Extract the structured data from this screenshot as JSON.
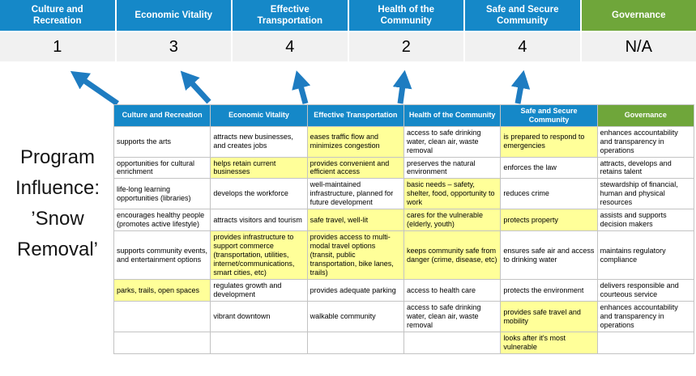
{
  "page_title": "Program Influence: ’Snow Removal’",
  "colors": {
    "header_blue": "#1588C8",
    "header_green": "#6FA63A",
    "highlight_yellow": "#FFFF99",
    "score_bg": "#F1F1F1",
    "arrow_blue": "#1E7CC1"
  },
  "summary": {
    "columns": [
      {
        "label": "Culture and Recreation",
        "score": "1",
        "theme": "blue"
      },
      {
        "label": "Economic Vitality",
        "score": "3",
        "theme": "blue"
      },
      {
        "label": "Effective Transportation",
        "score": "4",
        "theme": "blue"
      },
      {
        "label": "Health of the Community",
        "score": "2",
        "theme": "blue"
      },
      {
        "label": "Safe and Secure Community",
        "score": "4",
        "theme": "blue"
      },
      {
        "label": "Governance",
        "score": "N/A",
        "theme": "green"
      }
    ]
  },
  "matrix": {
    "headers": [
      {
        "label": "Culture and Recreation",
        "theme": "blue"
      },
      {
        "label": "Economic Vitality",
        "theme": "blue"
      },
      {
        "label": "Effective Transportation",
        "theme": "blue"
      },
      {
        "label": "Health of the Community",
        "theme": "blue"
      },
      {
        "label": "Safe and Secure Community",
        "theme": "blue"
      },
      {
        "label": "Governance",
        "theme": "green"
      }
    ],
    "rows": [
      [
        {
          "text": "supports the arts",
          "highlight": false
        },
        {
          "text": "attracts new businesses, and creates jobs",
          "highlight": false
        },
        {
          "text": "eases traffic flow and minimizes congestion",
          "highlight": true
        },
        {
          "text": "access to safe drinking water, clean air, waste removal",
          "highlight": false
        },
        {
          "text": "is prepared to respond to emergencies",
          "highlight": true
        },
        {
          "text": "enhances accountability and transparency in operations",
          "highlight": false
        }
      ],
      [
        {
          "text": "opportunities for cultural enrichment",
          "highlight": false
        },
        {
          "text": "helps retain current businesses",
          "highlight": true
        },
        {
          "text": "provides convenient and efficient access",
          "highlight": true
        },
        {
          "text": "preserves the natural environment",
          "highlight": false
        },
        {
          "text": "enforces the law",
          "highlight": false
        },
        {
          "text": "attracts, develops and retains talent",
          "highlight": false
        }
      ],
      [
        {
          "text": "life-long learning opportunities (libraries)",
          "highlight": false
        },
        {
          "text": "develops the workforce",
          "highlight": false
        },
        {
          "text": "well-maintained infrastructure, planned for future development",
          "highlight": false
        },
        {
          "text": "basic needs – safety, shelter, food, opportunity to work",
          "highlight": true
        },
        {
          "text": "reduces crime",
          "highlight": false
        },
        {
          "text": "stewardship of financial, human and physical resources",
          "highlight": false
        }
      ],
      [
        {
          "text": "encourages healthy people (promotes active lifestyle)",
          "highlight": false
        },
        {
          "text": "attracts visitors and tourism",
          "highlight": false
        },
        {
          "text": "safe travel, well-lit",
          "highlight": true
        },
        {
          "text": "cares for the vulnerable (elderly, youth)",
          "highlight": true
        },
        {
          "text": "protects property",
          "highlight": true
        },
        {
          "text": "assists and supports decision makers",
          "highlight": false
        }
      ],
      [
        {
          "text": "supports community events, and entertainment options",
          "highlight": false
        },
        {
          "text": "provides infrastructure to support commerce (transportation, utilities, internet/communications, smart cities, etc)",
          "highlight": true
        },
        {
          "text": "provides access to multi-modal travel options (transit, public transportation, bike lanes, trails)",
          "highlight": true
        },
        {
          "text": "keeps community safe from danger (crime, disease, etc)",
          "highlight": true
        },
        {
          "text": "ensures safe air and access to drinking water",
          "highlight": false
        },
        {
          "text": "maintains regulatory compliance",
          "highlight": false
        }
      ],
      [
        {
          "text": "parks, trails, open spaces",
          "highlight": true
        },
        {
          "text": "regulates growth and development",
          "highlight": false
        },
        {
          "text": "provides adequate parking",
          "highlight": false
        },
        {
          "text": "access to health care",
          "highlight": false
        },
        {
          "text": "protects the environment",
          "highlight": false
        },
        {
          "text": "delivers responsible and courteous service",
          "highlight": false
        }
      ],
      [
        {
          "text": "",
          "highlight": false
        },
        {
          "text": "vibrant downtown",
          "highlight": false
        },
        {
          "text": "walkable community",
          "highlight": false
        },
        {
          "text": "access to safe drinking water, clean air, waste removal",
          "highlight": false
        },
        {
          "text": "provides safe travel and mobility",
          "highlight": true
        },
        {
          "text": "enhances accountability and transparency in operations",
          "highlight": false
        }
      ],
      [
        {
          "text": "",
          "highlight": false
        },
        {
          "text": "",
          "highlight": false
        },
        {
          "text": "",
          "highlight": false
        },
        {
          "text": "",
          "highlight": false
        },
        {
          "text": "looks after it's most vulnerable",
          "highlight": true
        },
        {
          "text": "",
          "highlight": false
        }
      ]
    ]
  }
}
